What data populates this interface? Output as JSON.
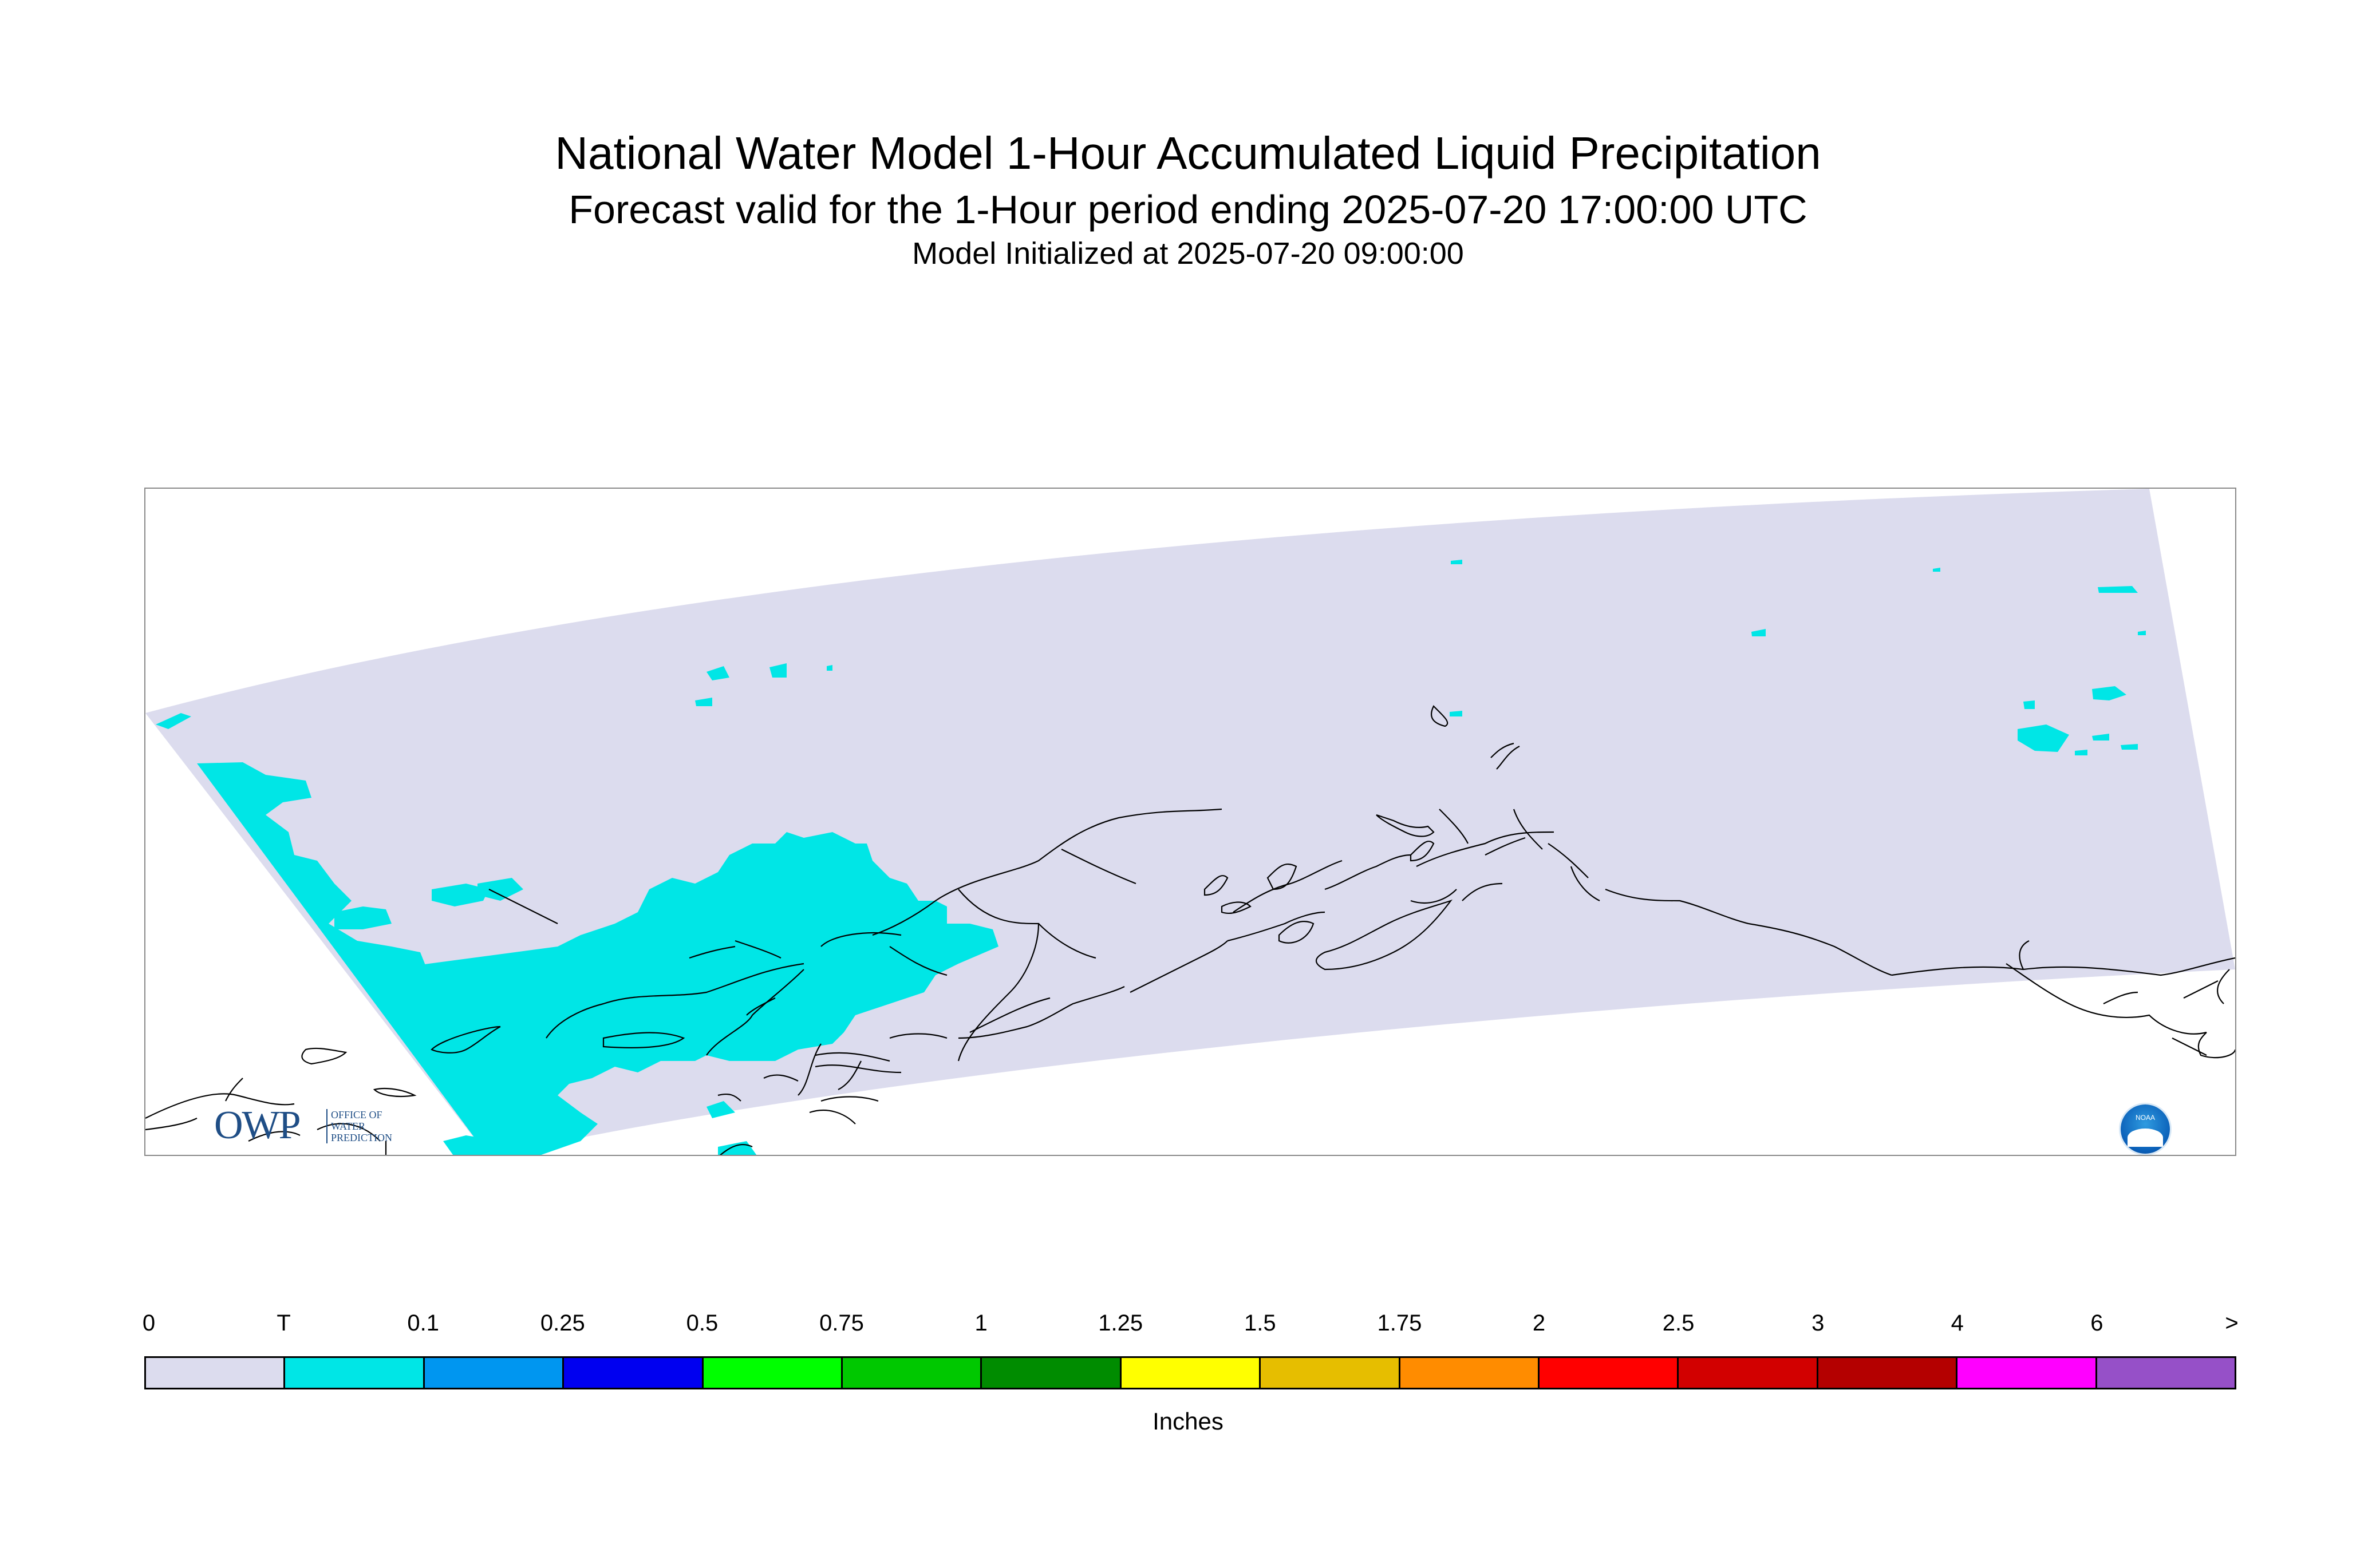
{
  "title": {
    "line1": "National Water Model 1-Hour Accumulated Liquid Precipitation",
    "line2": "Forecast valid for the 1-Hour period ending 2025-07-20 17:00:00 UTC",
    "line3": "Model Initialized at 2025-07-20 09:00:00"
  },
  "map": {
    "domain_color": "#dcdcee",
    "trace_color": "#00e6e6",
    "coastline_color": "#000000"
  },
  "logos": {
    "owp": {
      "mark": "OWP",
      "line1": "OFFICE OF",
      "line2": "WATER",
      "line3": "PREDICTION"
    },
    "noaa": {
      "label": "NOAA"
    }
  },
  "legend": {
    "units": "Inches",
    "tick_labels": [
      "0",
      "T",
      "0.1",
      "0.25",
      "0.5",
      "0.75",
      "1",
      "1.25",
      "1.5",
      "1.75",
      "2",
      "2.5",
      "3",
      "4",
      "6",
      ">"
    ],
    "colors": [
      "#dcdcee",
      "#00e6e6",
      "#0096f0",
      "#0000f0",
      "#00ff00",
      "#00c800",
      "#008c00",
      "#ffff00",
      "#e6be00",
      "#ff8c00",
      "#ff0000",
      "#d20000",
      "#b40000",
      "#ff00ff",
      "#9650c8"
    ]
  }
}
